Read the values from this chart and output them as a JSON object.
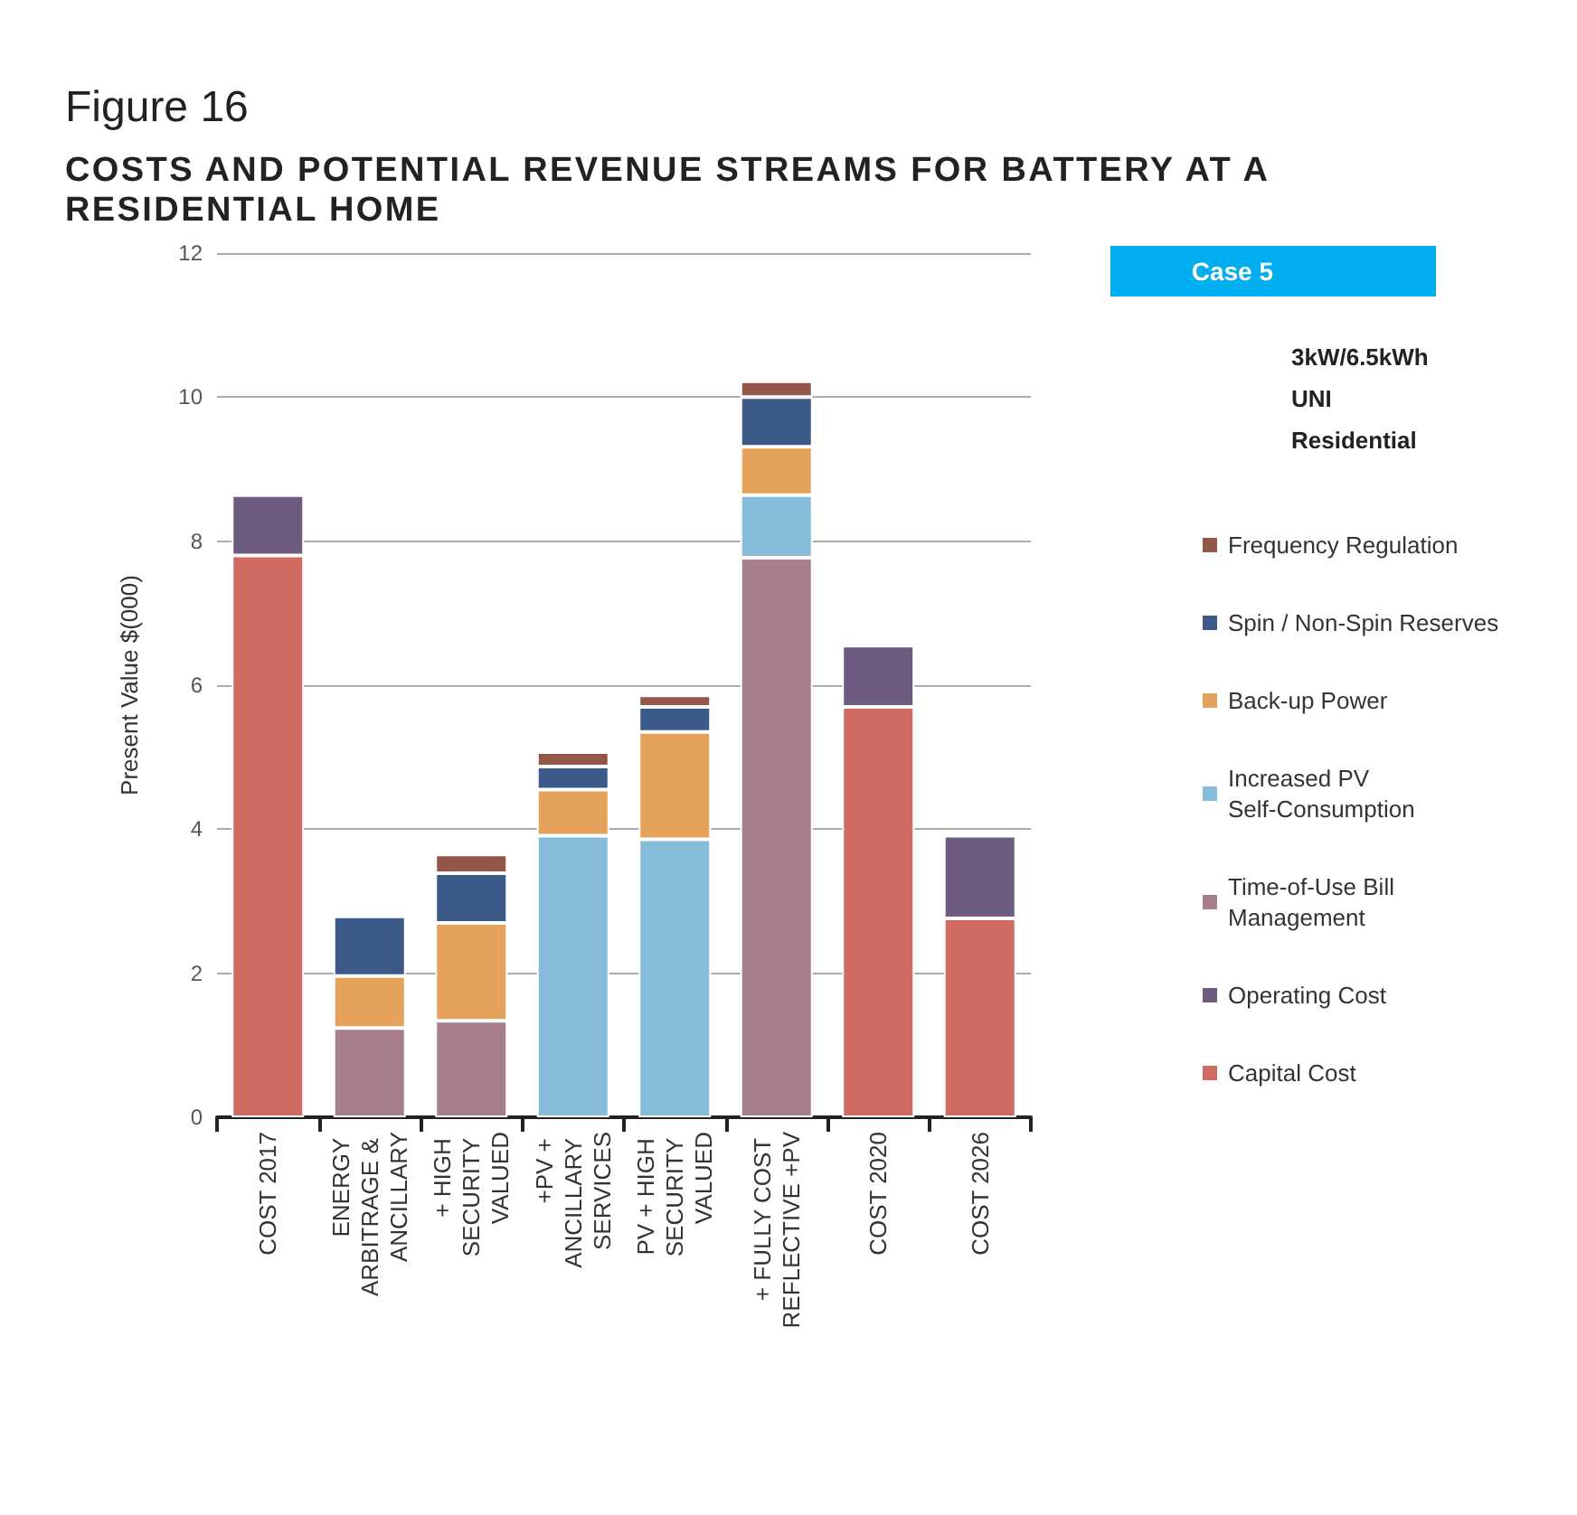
{
  "chart_data": {
    "type": "bar",
    "title": "Figure 16",
    "subtitle": "COSTS AND POTENTIAL REVENUE STREAMS FOR BATTERY AT A RESIDENTIAL HOME",
    "ylabel": "Present Value $(000)",
    "categories": [
      "COST 2017",
      "ENERGY ARBITRAGE & ANCILLARY",
      "+ HIGH SECURITY VALUED",
      "+PV + ANCILLARY SERVICES",
      "PV + HIGH SECURITY VALUED",
      "+ FULLY COST REFLECTIVE +PV",
      "COST 2020",
      "COST 2026"
    ],
    "stacked": true,
    "series": [
      {
        "name": "Capital Cost",
        "color": "#d16a60",
        "values": [
          7.8,
          null,
          null,
          null,
          null,
          null,
          5.7,
          2.76
        ]
      },
      {
        "name": "Operating Cost",
        "color": "#6e5b80",
        "values": [
          0.84,
          null,
          null,
          null,
          null,
          null,
          0.85,
          1.15
        ]
      },
      {
        "name": "Time-of-Use Bill Management",
        "color": "#a67f8b",
        "values": [
          null,
          1.24,
          1.34,
          null,
          null,
          7.77,
          null,
          null
        ]
      },
      {
        "name": "Increased PV Self-Consumption",
        "color": "#86bcd9",
        "values": [
          null,
          null,
          null,
          3.91,
          3.86,
          0.87,
          null,
          null
        ]
      },
      {
        "name": "Back-up Power",
        "color": "#e4a25a",
        "values": [
          null,
          0.72,
          1.36,
          0.64,
          1.49,
          0.67,
          null,
          null
        ]
      },
      {
        "name": "Spin / Non-Spin Reserves",
        "color": "#3c5a87",
        "values": [
          null,
          0.83,
          0.69,
          0.32,
          0.35,
          0.69,
          null,
          null
        ]
      },
      {
        "name": "Frequency Regulation",
        "color": "#93574a",
        "values": [
          null,
          null,
          0.26,
          0.2,
          0.16,
          0.22,
          null,
          null
        ]
      }
    ],
    "ylim": [
      0,
      12
    ],
    "yticks": [
      0,
      2,
      4,
      6,
      8,
      10,
      12
    ],
    "grid": "y",
    "legend": "right",
    "annotations": [
      "Case 5",
      "3kW/6.5kWh",
      "UNI",
      "Residential"
    ]
  }
}
